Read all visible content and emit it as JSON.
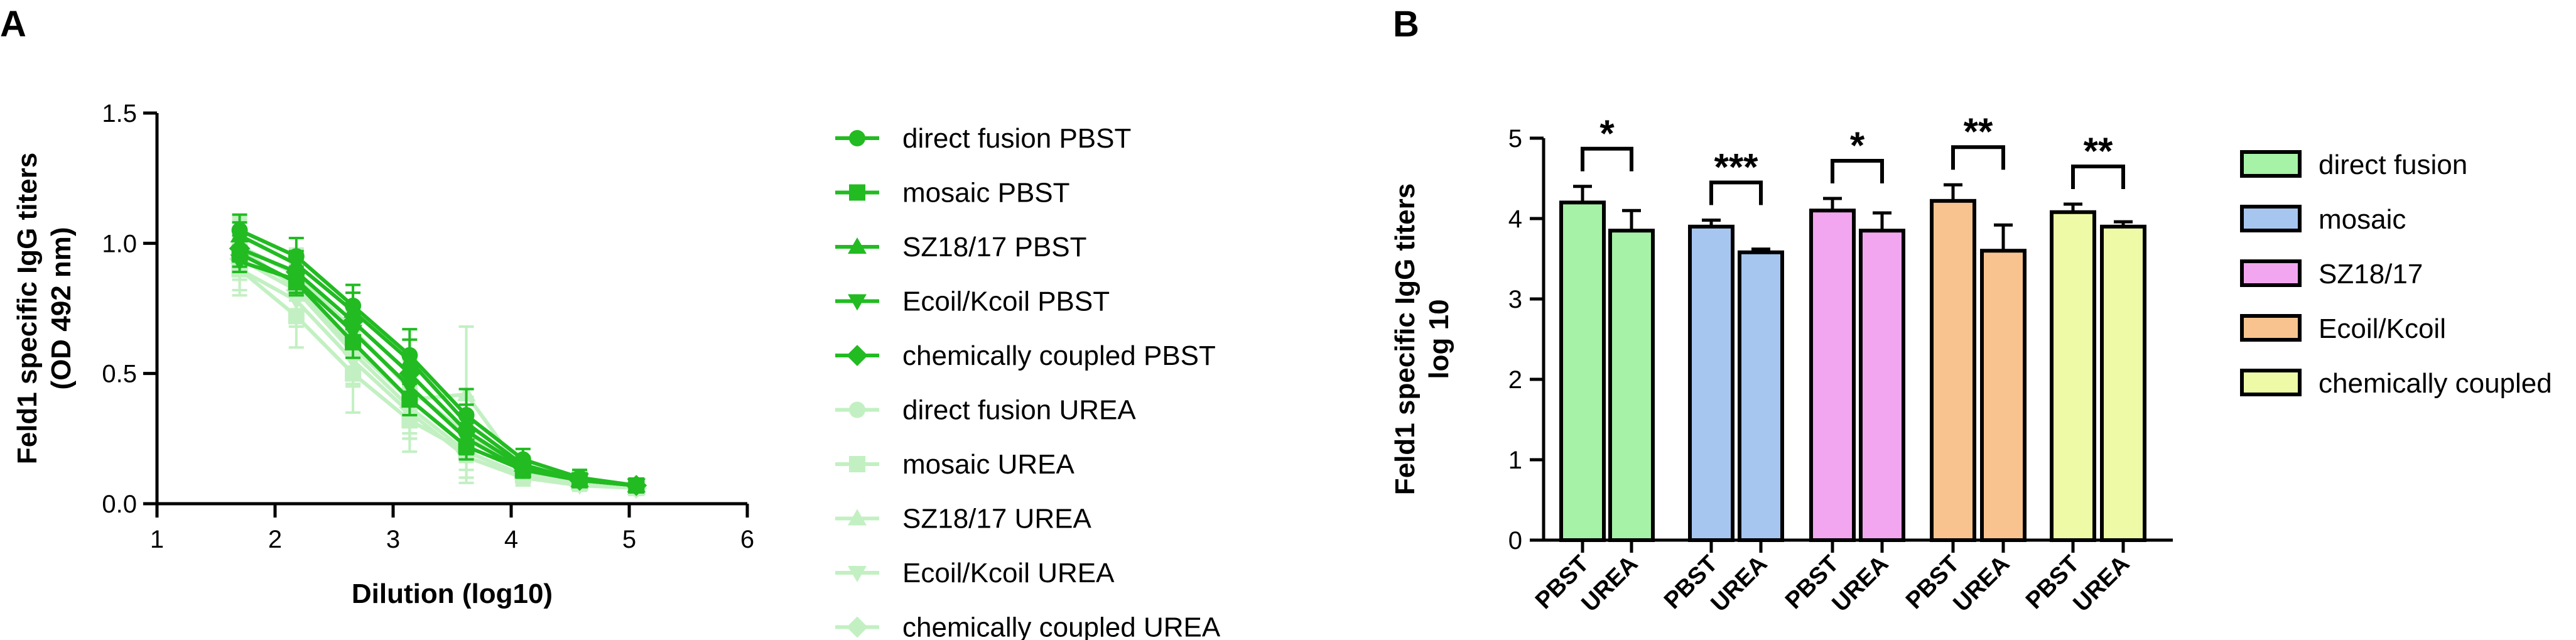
{
  "panels": {
    "a": "A",
    "b": "B"
  },
  "chart_data": [
    {
      "type": "line",
      "xlabel": "Dilution (log10)",
      "ylabel": [
        "Feld1 specific IgG titers",
        "(OD 492 nm)"
      ],
      "xlim": [
        1,
        6
      ],
      "ylim": [
        0,
        1.5
      ],
      "xticks": [
        "1",
        "2",
        "3",
        "4",
        "5",
        "6"
      ],
      "yticks": [
        "0.0",
        "0.5",
        "1.0",
        "1.5"
      ],
      "x": [
        1.7,
        2.18,
        2.66,
        3.14,
        3.62,
        4.1,
        4.58,
        5.06
      ],
      "series": [
        {
          "name": "direct fusion PBST",
          "marker": "circle",
          "color": "#22bb22",
          "values": [
            1.05,
            0.95,
            0.76,
            0.57,
            0.34,
            0.17,
            0.1,
            0.07
          ],
          "err": [
            0.06,
            0.07,
            0.08,
            0.1,
            0.1,
            0.04,
            0.03,
            0.02
          ]
        },
        {
          "name": "mosaic PBST",
          "marker": "square",
          "color": "#22bb22",
          "values": [
            0.96,
            0.85,
            0.62,
            0.4,
            0.22,
            0.13,
            0.09,
            0.07
          ],
          "err": [
            0.05,
            0.05,
            0.06,
            0.06,
            0.05,
            0.03,
            0.02,
            0.02
          ]
        },
        {
          "name": "SZ18/17 PBST",
          "marker": "triangle-up",
          "color": "#22bb22",
          "values": [
            1.03,
            0.92,
            0.74,
            0.55,
            0.31,
            0.15,
            0.09,
            0.07
          ],
          "err": [
            0.05,
            0.05,
            0.07,
            0.08,
            0.07,
            0.03,
            0.02,
            0.02
          ]
        },
        {
          "name": "Ecoil/Kcoil PBST",
          "marker": "triangle-down",
          "color": "#22bb22",
          "values": [
            0.93,
            0.86,
            0.66,
            0.45,
            0.25,
            0.13,
            0.09,
            0.07
          ],
          "err": [
            0.04,
            0.05,
            0.06,
            0.07,
            0.06,
            0.03,
            0.02,
            0.02
          ]
        },
        {
          "name": "chemically coupled PBST",
          "marker": "diamond",
          "color": "#22bb22",
          "values": [
            0.98,
            0.89,
            0.7,
            0.5,
            0.28,
            0.14,
            0.09,
            0.07
          ],
          "err": [
            0.05,
            0.05,
            0.07,
            0.07,
            0.07,
            0.03,
            0.02,
            0.02
          ]
        },
        {
          "name": "direct fusion UREA",
          "marker": "circle",
          "color": "#c2f0c2",
          "values": [
            0.99,
            0.88,
            0.67,
            0.44,
            0.27,
            0.14,
            0.09,
            0.07
          ],
          "err": [
            0.1,
            0.1,
            0.1,
            0.12,
            0.14,
            0.04,
            0.03,
            0.02
          ]
        },
        {
          "name": "mosaic UREA",
          "marker": "square",
          "color": "#c2f0c2",
          "values": [
            0.9,
            0.72,
            0.5,
            0.32,
            0.2,
            0.11,
            0.08,
            0.06
          ],
          "err": [
            0.1,
            0.12,
            0.15,
            0.12,
            0.1,
            0.04,
            0.03,
            0.02
          ]
        },
        {
          "name": "SZ18/17 UREA",
          "marker": "triangle-up",
          "color": "#c2f0c2",
          "values": [
            0.98,
            0.83,
            0.6,
            0.4,
            0.42,
            0.12,
            0.08,
            0.06
          ],
          "err": [
            0.12,
            0.12,
            0.14,
            0.15,
            0.26,
            0.04,
            0.03,
            0.02
          ]
        },
        {
          "name": "Ecoil/Kcoil UREA",
          "marker": "triangle-down",
          "color": "#c2f0c2",
          "values": [
            0.9,
            0.78,
            0.55,
            0.35,
            0.18,
            0.1,
            0.07,
            0.06
          ],
          "err": [
            0.08,
            0.1,
            0.1,
            0.1,
            0.1,
            0.03,
            0.02,
            0.02
          ]
        },
        {
          "name": "chemically coupled UREA",
          "marker": "diamond",
          "color": "#c2f0c2",
          "values": [
            0.94,
            0.82,
            0.58,
            0.37,
            0.2,
            0.11,
            0.08,
            0.06
          ],
          "err": [
            0.08,
            0.1,
            0.12,
            0.1,
            0.1,
            0.03,
            0.02,
            0.02
          ]
        }
      ]
    },
    {
      "type": "bar",
      "ylabel": [
        "Feld1 specific IgG titers",
        "log 10"
      ],
      "ylim": [
        0,
        5
      ],
      "yticks": [
        "0",
        "1",
        "2",
        "3",
        "4",
        "5"
      ],
      "bar_labels": [
        "PBST",
        "UREA"
      ],
      "groups": [
        {
          "name": "direct fusion",
          "color": "#a6f2a6",
          "values": [
            4.2,
            3.85
          ],
          "err": [
            0.2,
            0.25
          ],
          "sig": "*"
        },
        {
          "name": "mosaic",
          "color": "#a6c6f0",
          "values": [
            3.9,
            3.58
          ],
          "err": [
            0.08,
            0.04
          ],
          "sig": "***"
        },
        {
          "name": "SZ18/17",
          "color": "#f2a6ef",
          "values": [
            4.1,
            3.85
          ],
          "err": [
            0.15,
            0.22
          ],
          "sig": "*"
        },
        {
          "name": "Ecoil/Kcoil",
          "color": "#f8c38f",
          "values": [
            4.22,
            3.6
          ],
          "err": [
            0.2,
            0.32
          ],
          "sig": "**"
        },
        {
          "name": "chemically coupled",
          "color": "#eefaa6",
          "values": [
            4.08,
            3.9
          ],
          "err": [
            0.1,
            0.06
          ],
          "sig": "**"
        }
      ]
    }
  ]
}
